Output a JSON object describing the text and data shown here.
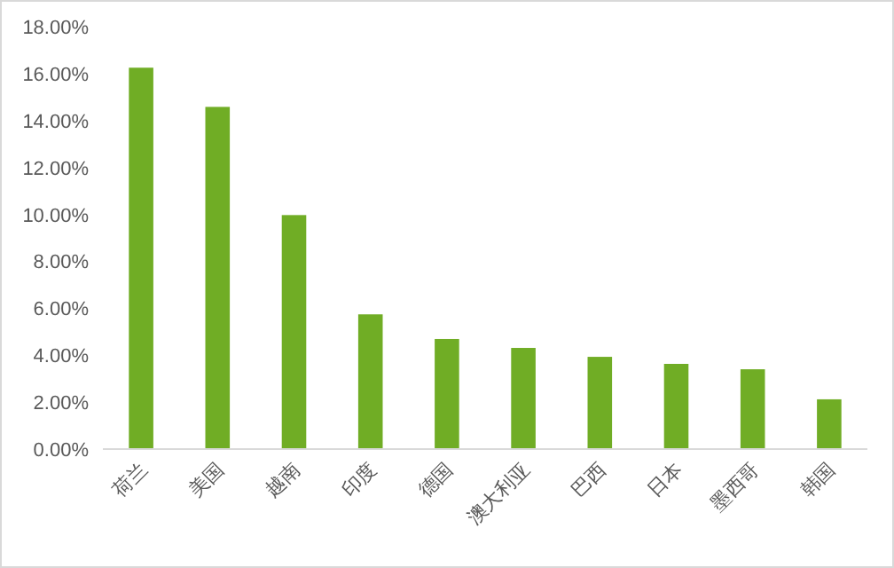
{
  "chart_data": {
    "type": "bar",
    "categories": [
      "荷兰",
      "美国",
      "越南",
      "印度",
      "德国",
      "澳大利亚",
      "巴西",
      "日本",
      "墨西哥",
      "韩国"
    ],
    "values": [
      16.25,
      14.58,
      9.97,
      5.74,
      4.69,
      4.31,
      3.93,
      3.63,
      3.4,
      2.12
    ],
    "color": "#70ad25",
    "ylim": [
      0,
      18
    ],
    "yticks": [
      {
        "value": 0,
        "label": "0.00%"
      },
      {
        "value": 2,
        "label": "2.00%"
      },
      {
        "value": 4,
        "label": "4.00%"
      },
      {
        "value": 6,
        "label": "6.00%"
      },
      {
        "value": 8,
        "label": "8.00%"
      },
      {
        "value": 10,
        "label": "10.00%"
      },
      {
        "value": 12,
        "label": "12.00%"
      },
      {
        "value": 14,
        "label": "14.00%"
      },
      {
        "value": 16,
        "label": "16.00%"
      },
      {
        "value": 18,
        "label": "18.00%"
      }
    ],
    "grid": false
  }
}
